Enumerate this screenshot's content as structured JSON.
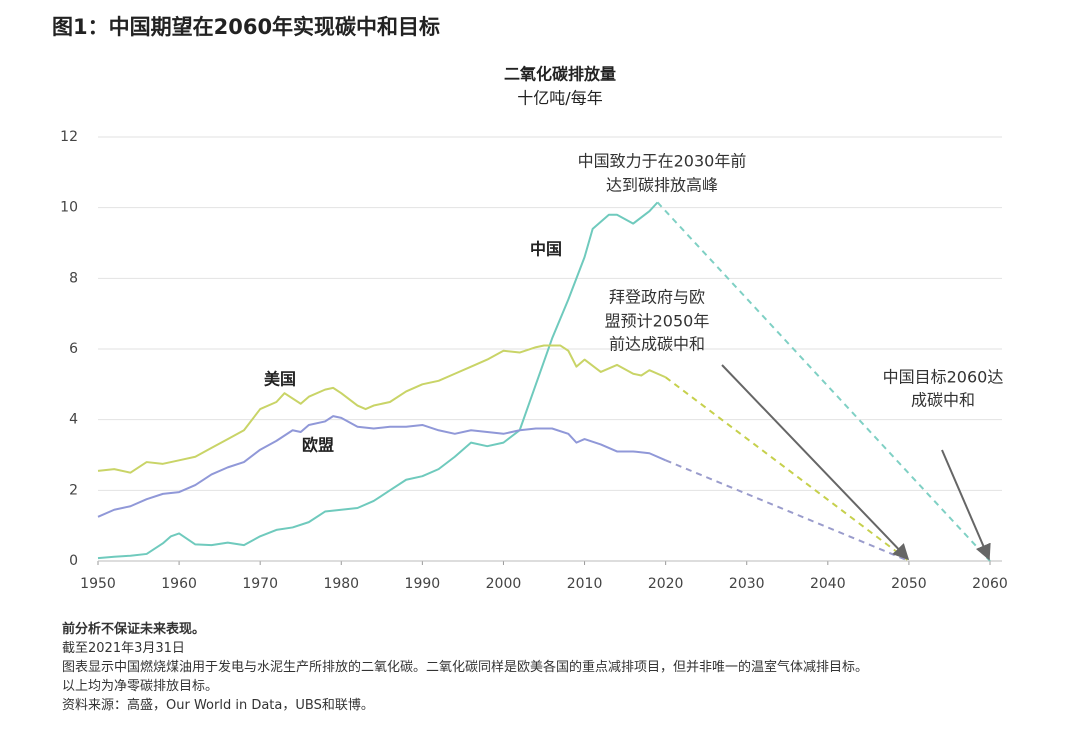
{
  "chart_data": {
    "type": "line",
    "title": "图1：中国期望在2060年实现碳中和目标",
    "y_label": [
      "二氧化碳排放量",
      "十亿吨/每年"
    ],
    "xlim": [
      1950,
      2060
    ],
    "xticks": [
      1950,
      1960,
      1970,
      1980,
      1990,
      2000,
      2010,
      2020,
      2030,
      2040,
      2050,
      2060
    ],
    "ylim": [
      0,
      12
    ],
    "yticks": [
      0,
      2,
      4,
      6,
      8,
      10,
      12
    ],
    "grid": true,
    "legend": false,
    "series": [
      {
        "name": "中国",
        "color": "#6fcabd",
        "x": [
          1950,
          1952,
          1954,
          1956,
          1958,
          1959,
          1960,
          1962,
          1964,
          1966,
          1968,
          1970,
          1972,
          1974,
          1976,
          1978,
          1980,
          1982,
          1984,
          1986,
          1988,
          1990,
          1992,
          1994,
          1996,
          1998,
          2000,
          2002,
          2004,
          2006,
          2008,
          2010,
          2011,
          2013,
          2014,
          2016,
          2018,
          2019
        ],
        "values": [
          0.08,
          0.12,
          0.15,
          0.2,
          0.5,
          0.7,
          0.78,
          0.47,
          0.45,
          0.52,
          0.45,
          0.7,
          0.88,
          0.95,
          1.1,
          1.4,
          1.45,
          1.5,
          1.7,
          2.0,
          2.3,
          2.4,
          2.6,
          2.95,
          3.35,
          3.25,
          3.35,
          3.7,
          5.0,
          6.3,
          7.4,
          8.6,
          9.4,
          9.8,
          9.8,
          9.55,
          9.9,
          10.15
        ]
      },
      {
        "name": "美国",
        "color": "#c9d467",
        "x": [
          1950,
          1952,
          1954,
          1956,
          1958,
          1960,
          1962,
          1964,
          1966,
          1968,
          1970,
          1972,
          1973,
          1975,
          1976,
          1978,
          1979,
          1980,
          1982,
          1983,
          1984,
          1986,
          1988,
          1990,
          1992,
          1994,
          1996,
          1998,
          2000,
          2002,
          2004,
          2005,
          2007,
          2008,
          2009,
          2010,
          2012,
          2014,
          2016,
          2017,
          2018,
          2020
        ],
        "values": [
          2.55,
          2.6,
          2.5,
          2.8,
          2.75,
          2.85,
          2.95,
          3.2,
          3.45,
          3.7,
          4.3,
          4.5,
          4.75,
          4.45,
          4.65,
          4.85,
          4.9,
          4.75,
          4.4,
          4.3,
          4.4,
          4.5,
          4.8,
          5.0,
          5.1,
          5.3,
          5.5,
          5.7,
          5.95,
          5.9,
          6.05,
          6.1,
          6.1,
          5.95,
          5.5,
          5.7,
          5.35,
          5.55,
          5.3,
          5.25,
          5.4,
          5.2
        ]
      },
      {
        "name": "欧盟",
        "color": "#9098d8",
        "x": [
          1950,
          1952,
          1954,
          1956,
          1958,
          1960,
          1962,
          1964,
          1966,
          1968,
          1970,
          1972,
          1974,
          1975,
          1976,
          1978,
          1979,
          1980,
          1982,
          1984,
          1986,
          1988,
          1990,
          1992,
          1994,
          1996,
          1998,
          2000,
          2002,
          2004,
          2006,
          2008,
          2009,
          2010,
          2012,
          2014,
          2016,
          2018,
          2020
        ],
        "values": [
          1.25,
          1.45,
          1.55,
          1.75,
          1.9,
          1.95,
          2.15,
          2.45,
          2.65,
          2.8,
          3.15,
          3.4,
          3.7,
          3.65,
          3.85,
          3.95,
          4.1,
          4.05,
          3.8,
          3.75,
          3.8,
          3.8,
          3.85,
          3.7,
          3.6,
          3.7,
          3.65,
          3.6,
          3.7,
          3.75,
          3.75,
          3.6,
          3.35,
          3.45,
          3.3,
          3.1,
          3.1,
          3.05,
          2.85
        ]
      },
      {
        "color": "#7fd0c4",
        "dashed": true,
        "x": [
          2019,
          2060
        ],
        "values": [
          10.15,
          0
        ]
      },
      {
        "color": "#c6d04c",
        "dashed": true,
        "x": [
          2020,
          2050
        ],
        "values": [
          5.2,
          0
        ]
      },
      {
        "color": "#9a9ccc",
        "dashed": true,
        "x": [
          2020,
          2050
        ],
        "values": [
          2.85,
          0
        ]
      }
    ],
    "annotations": [
      {
        "lines": [
          "中国致力于在2030年前",
          "达到碳排放高峰"
        ]
      },
      {
        "lines": [
          "拜登政府与欧",
          "盟预计2050年",
          "前达成碳中和"
        ]
      },
      {
        "lines": [
          "中国目标2060达",
          "成碳中和"
        ]
      }
    ],
    "notes": [
      "前分析不保证未来表现。",
      "截至2021年3月31日",
      "图表显示中国燃烧煤油用于发电与水泥生产所排放的二氧化碳。二氧化碳同样是欧美各国的重点减排项目，但并非唯一的温室气体减排目标。",
      "以上均为净零碳排放目标。",
      "资料来源：高盛，Our World in Data，UBS和联博。"
    ]
  }
}
